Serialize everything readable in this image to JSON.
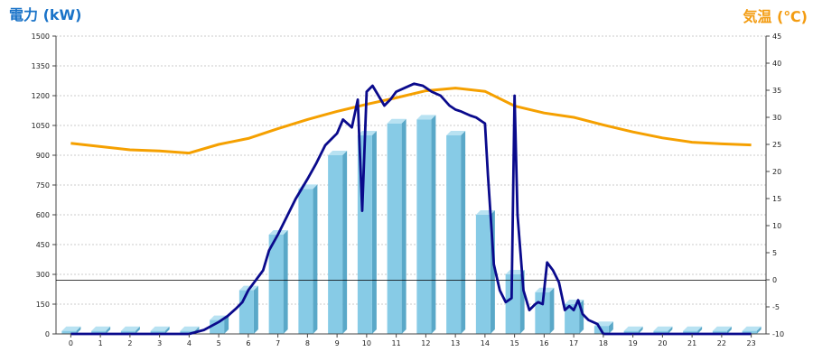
{
  "chart_data": {
    "type": "bar+line",
    "left_axis_title": "電力 (kW)",
    "right_axis_title": "気温 (℃)",
    "colors": {
      "left_title": "#1a73c8",
      "right_title": "#f39c12",
      "bar_front": "#87cbe6",
      "bar_side": "#5aa8c8",
      "bar_top": "#b8e2f2",
      "power_line": "#0a0a8c",
      "temp_line": "#f5a000",
      "grid": "#bbbbbb",
      "ref_line": "#000000"
    },
    "ylim_left": [
      0,
      1500
    ],
    "yticks_left": [
      "0",
      "150",
      "300",
      "450",
      "600",
      "750",
      "900",
      "1050",
      "1200",
      "1350",
      "1500"
    ],
    "ylim_right": [
      -10,
      45
    ],
    "yticks_right": [
      "-10",
      "-5",
      "0",
      "5",
      "10",
      "15",
      "20",
      "25",
      "30",
      "35",
      "40",
      "45"
    ],
    "categories": [
      "0",
      "1",
      "2",
      "3",
      "4",
      "5",
      "6",
      "7",
      "8",
      "9",
      "10",
      "11",
      "12",
      "13",
      "14",
      "15",
      "16",
      "17",
      "18",
      "19",
      "20",
      "21",
      "22",
      "23"
    ],
    "bar_values": [
      15,
      15,
      15,
      15,
      15,
      70,
      220,
      500,
      730,
      900,
      1000,
      1060,
      1080,
      1000,
      600,
      300,
      210,
      150,
      40,
      15,
      15,
      15,
      15,
      15
    ],
    "power_line": {
      "x": [
        0,
        1,
        2,
        3,
        4,
        4.5,
        5,
        5.3,
        5.6,
        5.8,
        6,
        6.2,
        6.4,
        6.5,
        6.7,
        7,
        7.3,
        7.6,
        8,
        8.3,
        8.6,
        8.8,
        9,
        9.2,
        9.5,
        9.7,
        9.85,
        10,
        10.2,
        10.4,
        10.6,
        10.8,
        11,
        11.3,
        11.6,
        11.9,
        12,
        12.2,
        12.5,
        12.8,
        13,
        13.2,
        13.5,
        13.7,
        13.9,
        14,
        14.1,
        14.3,
        14.5,
        14.7,
        14.9,
        15,
        15.1,
        15.3,
        15.5,
        15.7,
        15.8,
        15.95,
        16.1,
        16.3,
        16.5,
        16.7,
        16.85,
        17,
        17.15,
        17.3,
        17.5,
        17.8,
        18,
        18.5,
        19,
        20,
        21,
        22,
        23
      ],
      "y": [
        0,
        0,
        0,
        0,
        0,
        20,
        60,
        90,
        130,
        160,
        220,
        260,
        300,
        320,
        420,
        500,
        590,
        680,
        780,
        860,
        950,
        980,
        1010,
        1080,
        1040,
        1180,
        620,
        1220,
        1250,
        1200,
        1150,
        1180,
        1220,
        1240,
        1260,
        1250,
        1240,
        1220,
        1200,
        1150,
        1130,
        1120,
        1100,
        1090,
        1070,
        1060,
        800,
        350,
        220,
        160,
        180,
        1200,
        600,
        220,
        120,
        150,
        160,
        150,
        360,
        320,
        260,
        120,
        140,
        120,
        170,
        100,
        70,
        50,
        0,
        0,
        0,
        0,
        0,
        0,
        0
      ]
    },
    "temp_line": {
      "x": [
        0,
        1,
        2,
        3,
        4,
        5,
        6,
        7,
        8,
        9,
        10,
        11,
        12,
        13,
        14,
        15,
        16,
        17,
        18,
        19,
        20,
        21,
        22,
        23
      ],
      "y": [
        25.2,
        24.6,
        24.0,
        23.8,
        23.4,
        25.0,
        26.1,
        27.9,
        29.6,
        31.1,
        32.4,
        33.6,
        34.9,
        35.4,
        34.8,
        32.1,
        30.8,
        30.0,
        28.6,
        27.3,
        26.2,
        25.4,
        25.1,
        24.9
      ]
    },
    "reference_line_left_value": 270,
    "grid": true
  }
}
